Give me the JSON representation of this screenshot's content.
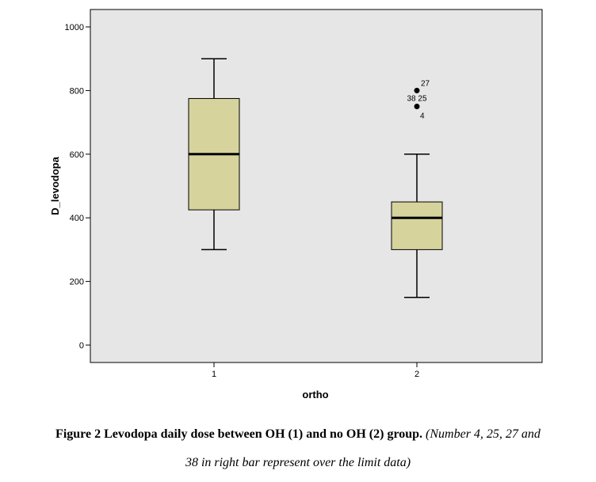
{
  "chart_data": {
    "type": "box",
    "xlabel": "ortho",
    "ylabel": "D_levodopa",
    "ylim": [
      -50,
      1060
    ],
    "yticks": [
      0,
      200,
      400,
      600,
      800,
      1000
    ],
    "categories": [
      "1",
      "2"
    ],
    "boxes": [
      {
        "category": "1",
        "whisker_low": 300,
        "q1": 425,
        "median": 600,
        "q3": 775,
        "whisker_high": 900,
        "outliers": []
      },
      {
        "category": "2",
        "whisker_low": 150,
        "q1": 300,
        "median": 400,
        "q3": 450,
        "whisker_high": 600,
        "outliers": [
          {
            "value": 800,
            "labels": [
              "27"
            ]
          },
          {
            "value": 750,
            "labels": [
              "38",
              "25"
            ]
          },
          {
            "value": 750,
            "labels": [
              "4"
            ]
          }
        ]
      }
    ],
    "colors": {
      "background": "#e6e6e6",
      "box_fill": "#d6d49c",
      "line": "#000000"
    }
  },
  "caption": {
    "bold": "Figure 2 Levodopa daily dose between OH (1) and no OH (2) group.",
    "italic_1": "(Number 4, 25, 27 and",
    "italic_2": "38 in right bar represent over the limit data)"
  }
}
